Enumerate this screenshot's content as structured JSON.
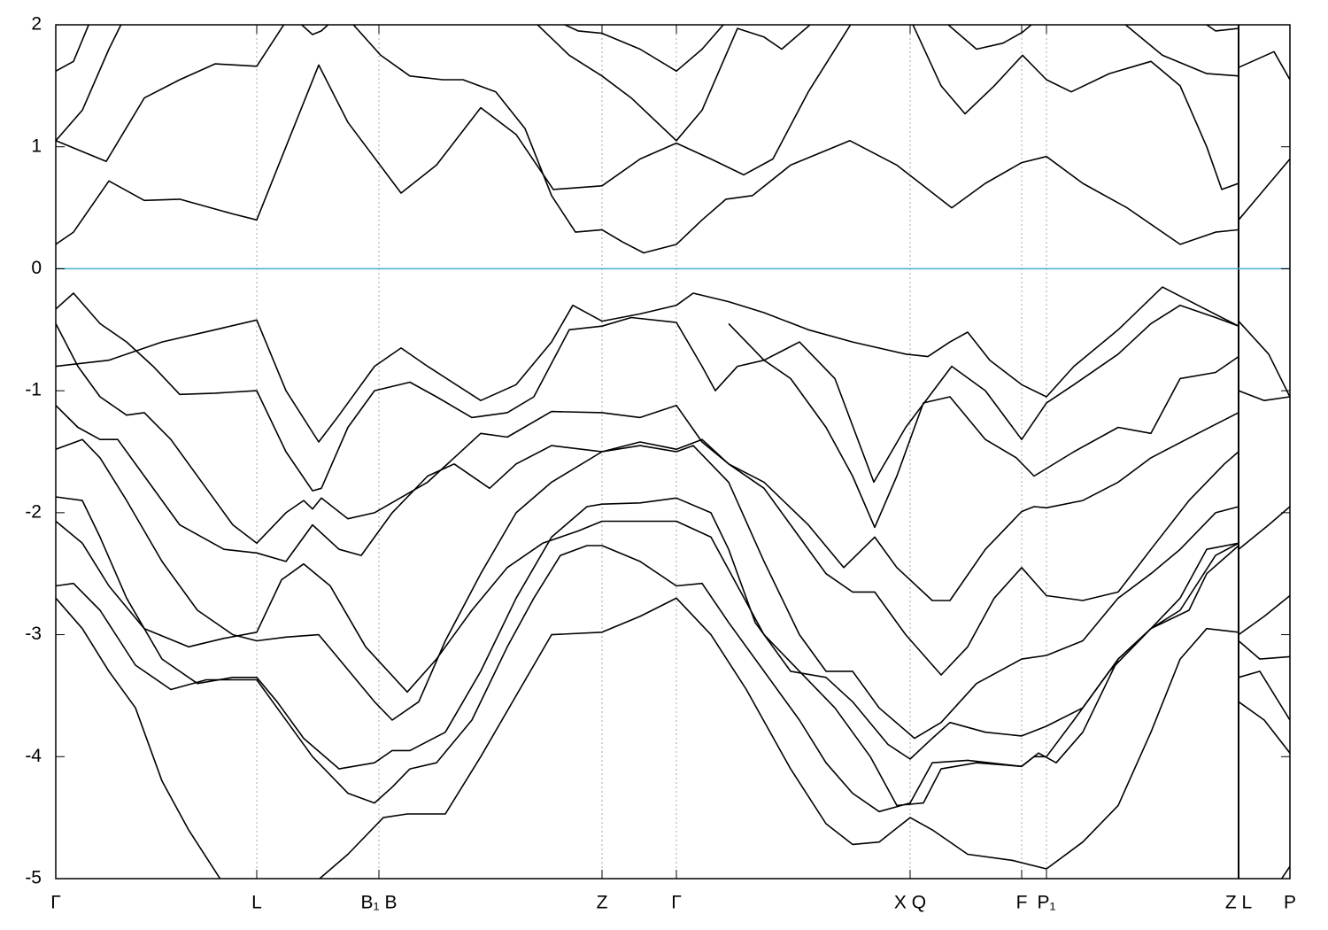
{
  "chart_data": {
    "type": "line",
    "xlim": [
      0,
      1394
    ],
    "ylim": [
      -5,
      2
    ],
    "yticks": [
      -5,
      -4,
      -3,
      -2,
      -1,
      0,
      1,
      2
    ],
    "xticks": [
      {
        "value": 0,
        "label": "Γ"
      },
      {
        "value": 227,
        "label": "L"
      },
      {
        "value": 365,
        "label": "B₁ B"
      },
      {
        "value": 617,
        "label": "Z"
      },
      {
        "value": 701,
        "label": "Γ"
      },
      {
        "value": 965,
        "label": "X Q"
      },
      {
        "value": 1091,
        "label": "F"
      },
      {
        "value": 1119,
        "label": "P₁"
      },
      {
        "value": 1336,
        "label": "Z L"
      },
      {
        "value": 1394,
        "label": "P"
      }
    ],
    "grid": true,
    "reference_line": {
      "y": 0,
      "color": "#4aaec8"
    },
    "series": [
      {
        "color": "#000000",
        "x": [
          0,
          20,
          60,
          100,
          140,
          200,
          227,
          260,
          297,
          330,
          390,
          430,
          480,
          520,
          562,
          617,
          660,
          701,
          740,
          777,
          810,
          850,
          902
        ],
        "values": [
          0.2,
          0.3,
          0.72,
          0.56,
          0.57,
          0.45,
          0.4,
          1.0,
          1.67,
          1.2,
          0.62,
          0.85,
          1.32,
          1.1,
          0.65,
          0.68,
          0.9,
          1.03,
          0.9,
          0.77,
          0.9,
          1.45,
          2.05
        ]
      },
      {
        "color": "#000000",
        "x": [
          0,
          57,
          100,
          140,
          180,
          227,
          262
        ],
        "values": [
          1.05,
          0.88,
          1.4,
          1.55,
          1.68,
          1.66,
          2.05
        ]
      },
      {
        "color": "#000000",
        "x": [
          330,
          367,
          400,
          437,
          460,
          497,
          530,
          560,
          587,
          617,
          640,
          664,
          701,
          730,
          757,
          787,
          830,
          897,
          950,
          1012,
          1050,
          1091,
          1119,
          1160,
          1210,
          1270,
          1310,
          1336,
          1336,
          1336,
          1365,
          1394
        ],
        "values": [
          2.05,
          1.75,
          1.58,
          1.55,
          1.55,
          1.45,
          1.15,
          0.6,
          0.3,
          0.32,
          0.22,
          0.13,
          0.2,
          0.4,
          0.57,
          0.6,
          0.85,
          1.05,
          0.85,
          0.5,
          0.7,
          0.87,
          0.92,
          0.7,
          0.5,
          0.2,
          0.3,
          0.32,
          null,
          0.4,
          0.65,
          0.9
        ]
      },
      {
        "color": "#000000",
        "x": [
          965,
          1000,
          1027,
          1060,
          1092,
          1119,
          1147,
          1190,
          1237,
          1270,
          1300,
          1317,
          1336,
          1336,
          1336,
          1376,
          1394
        ],
        "values": [
          2.05,
          1.5,
          1.27,
          1.5,
          1.75,
          1.55,
          1.45,
          1.6,
          1.7,
          1.5,
          1.0,
          0.65,
          0.7,
          null,
          1.65,
          1.78,
          1.55
        ]
      },
      {
        "color": "#000000",
        "x": [
          0,
          30,
          60,
          77
        ],
        "values": [
          1.05,
          1.3,
          1.8,
          2.05
        ]
      },
      {
        "color": "#000000",
        "x": [
          0,
          20,
          40
        ],
        "values": [
          1.62,
          1.7,
          2.05
        ]
      },
      {
        "color": "#000000",
        "x": [
          537,
          580,
          617,
          650,
          701,
          730,
          770,
          800,
          820,
          860
        ],
        "values": [
          2.05,
          1.75,
          1.58,
          1.4,
          1.05,
          1.3,
          1.97,
          1.9,
          1.8,
          2.05
        ]
      },
      {
        "color": "#000000",
        "x": [
          560,
          590,
          617,
          660,
          701,
          730,
          760
        ],
        "values": [
          2.05,
          1.95,
          1.93,
          1.8,
          1.62,
          1.8,
          2.05
        ]
      },
      {
        "color": "#000000",
        "x": [
          1000,
          1040,
          1070,
          1092,
          1110
        ],
        "values": [
          2.05,
          1.8,
          1.85,
          1.94,
          2.05
        ]
      },
      {
        "color": "#000000",
        "x": [
          1200,
          1250,
          1300,
          1336
        ],
        "values": [
          2.05,
          1.75,
          1.6,
          1.58
        ]
      },
      {
        "color": "#000000",
        "x": [
          1290,
          1310,
          1336
        ],
        "values": [
          2.05,
          1.95,
          1.97
        ]
      },
      {
        "color": "#000000",
        "x": [
          270,
          290,
          300,
          315
        ],
        "values": [
          2.05,
          1.92,
          1.95,
          2.05
        ]
      },
      {
        "color": "#000000",
        "x": [
          0,
          60,
          120,
          180,
          227,
          260,
          297,
          320,
          360,
          390,
          420,
          480,
          520,
          560,
          584,
          617,
          660,
          701,
          720,
          760,
          800,
          850,
          900,
          960,
          985,
          1010,
          1030,
          1055,
          1091,
          1119,
          1150,
          1200,
          1250,
          1290,
          1336,
          1336,
          1336,
          1370,
          1394
        ],
        "values": [
          -0.8,
          -0.75,
          -0.6,
          -0.5,
          -0.42,
          -1.0,
          -1.42,
          -1.2,
          -0.8,
          -0.65,
          -0.8,
          -1.08,
          -0.95,
          -0.6,
          -0.3,
          -0.43,
          -0.37,
          -0.3,
          -0.2,
          -0.27,
          -0.36,
          -0.5,
          -0.6,
          -0.7,
          -0.72,
          -0.6,
          -0.52,
          -0.75,
          -0.95,
          -1.05,
          -0.8,
          -0.5,
          -0.15,
          -0.3,
          -0.47,
          null,
          -0.43,
          -0.7,
          -1.05
        ]
      },
      {
        "color": "#000000",
        "x": [
          0,
          20,
          50,
          80,
          110,
          140,
          180,
          227,
          260,
          290,
          300,
          330,
          360,
          400,
          430,
          470,
          510,
          540,
          580,
          617,
          650,
          701,
          730,
          745,
          770,
          800,
          830,
          870,
          900,
          925,
          950,
          980,
          1010,
          1050,
          1085,
          1105,
          1150,
          1200,
          1237,
          1270,
          1310,
          1336,
          1336,
          1336,
          1365,
          1394
        ],
        "values": [
          -0.33,
          -0.2,
          -0.45,
          -0.6,
          -0.8,
          -1.03,
          -1.02,
          -1.0,
          -1.5,
          -1.82,
          -1.8,
          -1.3,
          -1.0,
          -0.93,
          -1.05,
          -1.22,
          -1.18,
          -1.05,
          -0.5,
          -0.47,
          -0.4,
          -0.44,
          -0.8,
          -1.0,
          -0.8,
          -0.75,
          -0.9,
          -1.3,
          -1.7,
          -2.12,
          -1.7,
          -1.1,
          -1.05,
          -1.4,
          -1.55,
          -1.7,
          -1.5,
          -1.3,
          -1.35,
          -0.9,
          -0.85,
          -0.72,
          null,
          -1.0,
          -1.08,
          -1.05
        ]
      },
      {
        "color": "#000000",
        "x": [
          0,
          25,
          50,
          80,
          100,
          130,
          170,
          200,
          227,
          260,
          280,
          290,
          300,
          330,
          360,
          420,
          480,
          510,
          560,
          617,
          660,
          701,
          730,
          760,
          800,
          850,
          890,
          925,
          950,
          990,
          1010,
          1050,
          1091,
          1105,
          1119,
          1160,
          1200,
          1237,
          1290,
          1336
        ],
        "values": [
          -0.45,
          -0.8,
          -1.05,
          -1.2,
          -1.18,
          -1.4,
          -1.8,
          -2.1,
          -2.25,
          -2.0,
          -1.9,
          -1.97,
          -1.88,
          -2.05,
          -2.0,
          -1.75,
          -1.35,
          -1.38,
          -1.17,
          -1.18,
          -1.22,
          -1.12,
          -1.42,
          -1.6,
          -1.75,
          -2.1,
          -2.45,
          -2.2,
          -2.45,
          -2.72,
          -2.72,
          -2.3,
          -1.99,
          -1.95,
          -1.96,
          -1.9,
          -1.75,
          -1.55,
          -1.35,
          -1.18
        ]
      },
      {
        "color": "#000000",
        "x": [
          0,
          25,
          50,
          70,
          100,
          140,
          190,
          227,
          260,
          290,
          320,
          345,
          380,
          420,
          450,
          490,
          520,
          560,
          617,
          660,
          701,
          730,
          760,
          800,
          840,
          870,
          900,
          925,
          960,
          1000,
          1030,
          1060,
          1091,
          1119,
          1160,
          1200,
          1237,
          1280,
          1320,
          1336,
          1336,
          1336,
          1370,
          1394
        ],
        "values": [
          -1.12,
          -1.3,
          -1.4,
          -1.4,
          -1.7,
          -2.1,
          -2.3,
          -2.33,
          -2.4,
          -2.1,
          -2.3,
          -2.35,
          -2.0,
          -1.7,
          -1.6,
          -1.8,
          -1.6,
          -1.45,
          -1.5,
          -1.42,
          -1.48,
          -1.4,
          -1.6,
          -1.8,
          -2.2,
          -2.5,
          -2.65,
          -2.65,
          -3.0,
          -3.33,
          -3.1,
          -2.7,
          -2.45,
          -2.68,
          -2.72,
          -2.65,
          -2.3,
          -1.9,
          -1.6,
          -1.5,
          null,
          -2.3,
          -2.1,
          -1.95
        ]
      },
      {
        "color": "#000000",
        "x": [
          0,
          30,
          50,
          80,
          120,
          160,
          200,
          227,
          260,
          297,
          320,
          360,
          380,
          410,
          440,
          480,
          520,
          560,
          617,
          660,
          701,
          720,
          760,
          800,
          840,
          870,
          900,
          930,
          970,
          1000,
          1040,
          1091,
          1119,
          1160,
          1200,
          1237,
          1270,
          1310,
          1336,
          1336,
          1336,
          1365,
          1394
        ],
        "values": [
          -1.48,
          -1.4,
          -1.55,
          -1.9,
          -2.4,
          -2.8,
          -3.0,
          -3.05,
          -3.02,
          -3.0,
          -3.2,
          -3.55,
          -3.7,
          -3.55,
          -3.05,
          -2.5,
          -2.0,
          -1.75,
          -1.5,
          -1.45,
          -1.5,
          -1.45,
          -1.75,
          -2.4,
          -3.0,
          -3.3,
          -3.3,
          -3.6,
          -3.85,
          -3.72,
          -3.4,
          -3.2,
          -3.17,
          -3.05,
          -2.7,
          -2.5,
          -2.3,
          -2.0,
          -1.95,
          null,
          -3.0,
          -2.85,
          -2.68
        ]
      },
      {
        "color": "#000000",
        "x": [
          0,
          30,
          50,
          80,
          120,
          160,
          200,
          227,
          250,
          280,
          320,
          360,
          380,
          400,
          440,
          480,
          520,
          560,
          600,
          617,
          660,
          701,
          740,
          760,
          790,
          830,
          870,
          900,
          940,
          965,
          990,
          1010,
          1050,
          1091,
          1119,
          1160,
          1200,
          1237,
          1270,
          1300,
          1336,
          1336,
          1336,
          1360,
          1394
        ],
        "values": [
          -1.87,
          -1.9,
          -2.2,
          -2.7,
          -3.2,
          -3.4,
          -3.35,
          -3.35,
          -3.55,
          -3.85,
          -4.1,
          -4.05,
          -3.95,
          -3.95,
          -3.8,
          -3.3,
          -2.7,
          -2.2,
          -1.95,
          -1.93,
          -1.92,
          -1.88,
          -2.0,
          -2.3,
          -2.9,
          -3.3,
          -3.35,
          -3.55,
          -3.9,
          -4.02,
          -3.85,
          -3.72,
          -3.8,
          -3.83,
          -3.75,
          -3.6,
          -3.2,
          -2.95,
          -2.7,
          -2.3,
          -2.25,
          null,
          -3.05,
          -3.2,
          -3.18
        ]
      },
      {
        "color": "#000000",
        "x": [
          0,
          30,
          60,
          100,
          150,
          190,
          227,
          255,
          280,
          310,
          350,
          397,
          430,
          470,
          510,
          550,
          590,
          617,
          701,
          740,
          770,
          800,
          840,
          880,
          920,
          950,
          980,
          1000,
          1040,
          1091,
          1105,
          1119,
          1150,
          1190,
          1237,
          1270,
          1310,
          1336,
          1336,
          1336,
          1365,
          1394
        ],
        "values": [
          -2.07,
          -2.25,
          -2.6,
          -2.95,
          -3.1,
          -3.03,
          -2.98,
          -2.55,
          -2.42,
          -2.6,
          -3.1,
          -3.47,
          -3.2,
          -2.8,
          -2.45,
          -2.25,
          -2.15,
          -2.07,
          -2.07,
          -2.2,
          -2.6,
          -3.0,
          -3.3,
          -3.6,
          -4.0,
          -4.4,
          -4.38,
          -4.1,
          -4.05,
          -4.08,
          -4.0,
          -4.0,
          -3.7,
          -3.3,
          -2.95,
          -2.8,
          -2.35,
          -2.25,
          null,
          -3.55,
          -3.7,
          -3.97
        ]
      },
      {
        "color": "#000000",
        "x": [
          0,
          20,
          50,
          90,
          130,
          170,
          227,
          250,
          290,
          330,
          360,
          380,
          400,
          430,
          470,
          510,
          540,
          570,
          600,
          617,
          660,
          701,
          730,
          760,
          800,
          840,
          870,
          900,
          930,
          965,
          990,
          1030,
          1091,
          1110,
          1130,
          1160,
          1200,
          1237,
          1280,
          1300,
          1336,
          1336,
          1336,
          1360,
          1394
        ],
        "values": [
          -2.6,
          -2.58,
          -2.8,
          -3.25,
          -3.45,
          -3.37,
          -3.37,
          -3.6,
          -4.0,
          -4.3,
          -4.38,
          -4.25,
          -4.1,
          -4.05,
          -3.7,
          -3.1,
          -2.7,
          -2.35,
          -2.27,
          -2.27,
          -2.4,
          -2.6,
          -2.58,
          -2.9,
          -3.3,
          -3.7,
          -4.05,
          -4.3,
          -4.45,
          -4.38,
          -4.05,
          -4.03,
          -4.08,
          -3.97,
          -4.05,
          -3.8,
          -3.2,
          -2.95,
          -2.8,
          -2.5,
          -2.27,
          null,
          -3.35,
          -3.3,
          -3.7
        ]
      },
      {
        "color": "#000000",
        "x": [
          0,
          30,
          60,
          90,
          120,
          150,
          190,
          240,
          290,
          330,
          370,
          397,
          440,
          480,
          520,
          560,
          617,
          660,
          701,
          740,
          780,
          830,
          870,
          900,
          930,
          965,
          990,
          1030,
          1080,
          1119,
          1160,
          1200,
          1237,
          1270,
          1300,
          1336,
          1336,
          1380,
          1394
        ],
        "values": [
          -2.7,
          -2.95,
          -3.3,
          -3.6,
          -4.2,
          -4.6,
          -5.05,
          null,
          -5.05,
          -4.8,
          -4.5,
          -4.47,
          -4.47,
          -4.0,
          -3.5,
          -3.0,
          -2.98,
          -2.85,
          -2.7,
          -3.0,
          -3.45,
          -4.1,
          -4.55,
          -4.72,
          -4.7,
          -4.5,
          -4.6,
          -4.8,
          -4.85,
          -4.92,
          -4.7,
          -4.4,
          -3.8,
          -3.2,
          -2.95,
          -2.98,
          null,
          -5.05,
          -4.9
        ]
      },
      {
        "color": "#000000",
        "x": [
          760,
          800,
          840,
          880,
          924,
          960,
          1012,
          1050,
          1091,
          1119,
          1150,
          1200,
          1237,
          1270,
          1310,
          1336
        ],
        "values": [
          -0.45,
          -0.75,
          -0.6,
          -0.9,
          -1.75,
          -1.3,
          -0.8,
          -1.0,
          -1.4,
          -1.1,
          -0.95,
          -0.7,
          -0.45,
          -0.3,
          -0.4,
          -0.47
        ]
      }
    ]
  }
}
